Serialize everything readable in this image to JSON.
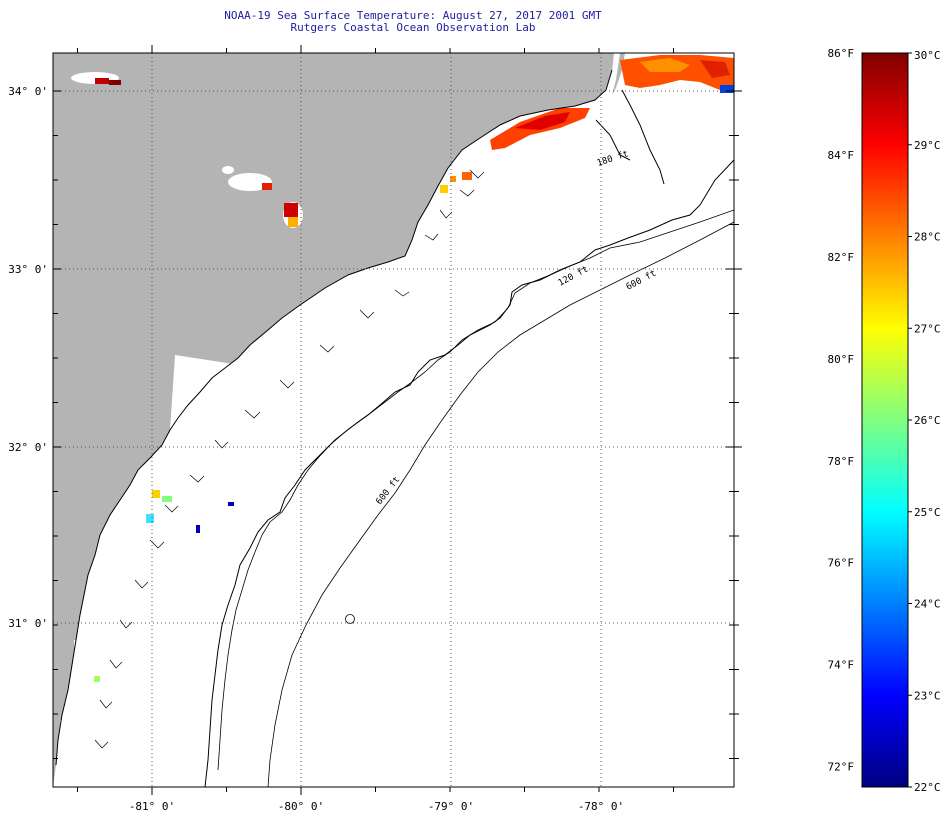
{
  "header": {
    "title": "NOAA-19 Sea Surface Temperature:  August 27, 2017 2001 GMT",
    "subtitle": "Rutgers Coastal Ocean Observation Lab"
  },
  "map": {
    "lat_labels": [
      "34° 0'",
      "33° 0'",
      "32° 0'",
      "31° 0'"
    ],
    "lon_labels": [
      "-81° 0'",
      "-80° 0'",
      "-79° 0'",
      "-78° 0'"
    ],
    "contour_labels": [
      "120 ft",
      "600 ft",
      "180 ft",
      "600 ft"
    ],
    "land_color": "#b4b4b4",
    "water_color": "#ffffff"
  },
  "colorbar": {
    "fahrenheit_labels": [
      "86°F",
      "84°F",
      "82°F",
      "80°F",
      "78°F",
      "76°F",
      "74°F",
      "72°F"
    ],
    "celsius_labels": [
      "30°C",
      "29°C",
      "28°C",
      "27°C",
      "26°C",
      "25°C",
      "24°C",
      "23°C",
      "22°C"
    ],
    "min_c": 22,
    "max_c": 30,
    "colors": [
      "#000080",
      "#0000ff",
      "#0080ff",
      "#00ffff",
      "#80ff80",
      "#ffff00",
      "#ff8000",
      "#ff0000",
      "#800000"
    ]
  }
}
